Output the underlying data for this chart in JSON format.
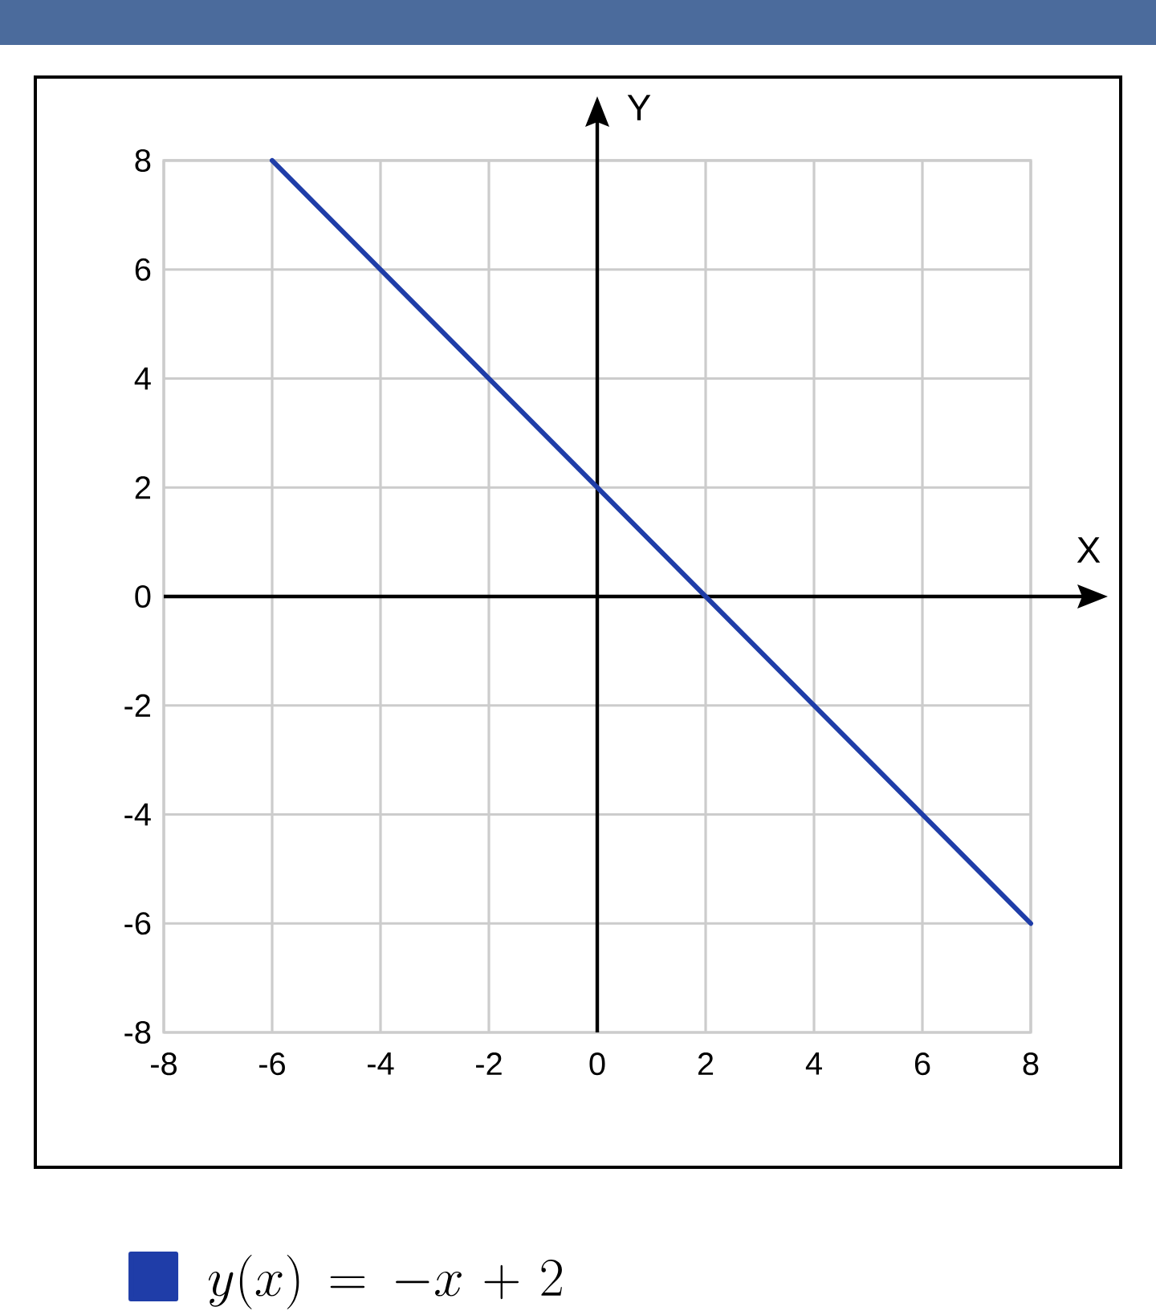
{
  "chart_data": {
    "type": "line",
    "xlabel": "X",
    "ylabel": "Y",
    "x": [
      -6,
      8
    ],
    "series": [
      {
        "name": "y(x) = -x + 2",
        "color": "#1f3da8",
        "values": [
          8,
          -6
        ]
      }
    ],
    "xlim": [
      -8,
      8
    ],
    "ylim": [
      -8,
      8
    ],
    "xticks": [
      -8,
      -6,
      -4,
      -2,
      0,
      2,
      4,
      6,
      8
    ],
    "yticks": [
      -8,
      -6,
      -4,
      -2,
      0,
      2,
      4,
      6,
      8
    ],
    "grid": true,
    "legend": "bottom",
    "marker": "none",
    "line_style": "solid"
  }
}
